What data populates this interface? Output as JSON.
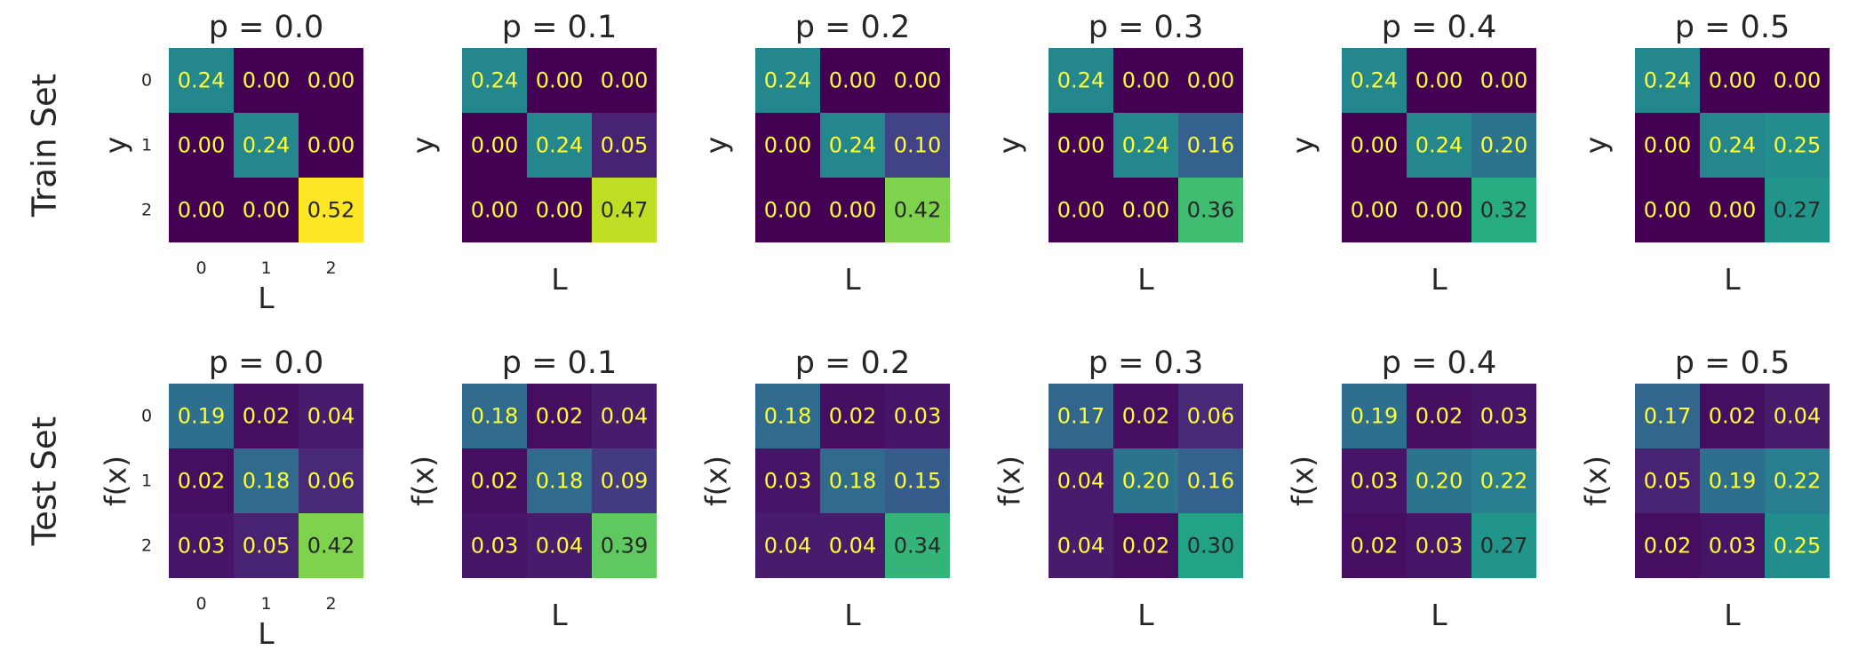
{
  "figure": {
    "rows": [
      {
        "row_label": "Train Set",
        "ylabel": "y",
        "xlabel": "L",
        "tick_labels": [
          "0",
          "1",
          "2"
        ],
        "panels": [
          {
            "title": "p = 0.0",
            "matrix": [
              [
                0.24,
                0.0,
                0.0
              ],
              [
                0.0,
                0.24,
                0.0
              ],
              [
                0.0,
                0.0,
                0.52
              ]
            ]
          },
          {
            "title": "p = 0.1",
            "matrix": [
              [
                0.24,
                0.0,
                0.0
              ],
              [
                0.0,
                0.24,
                0.05
              ],
              [
                0.0,
                0.0,
                0.47
              ]
            ]
          },
          {
            "title": "p = 0.2",
            "matrix": [
              [
                0.24,
                0.0,
                0.0
              ],
              [
                0.0,
                0.24,
                0.1
              ],
              [
                0.0,
                0.0,
                0.42
              ]
            ]
          },
          {
            "title": "p = 0.3",
            "matrix": [
              [
                0.24,
                0.0,
                0.0
              ],
              [
                0.0,
                0.24,
                0.16
              ],
              [
                0.0,
                0.0,
                0.36
              ]
            ]
          },
          {
            "title": "p = 0.4",
            "matrix": [
              [
                0.24,
                0.0,
                0.0
              ],
              [
                0.0,
                0.24,
                0.2
              ],
              [
                0.0,
                0.0,
                0.32
              ]
            ]
          },
          {
            "title": "p = 0.5",
            "matrix": [
              [
                0.24,
                0.0,
                0.0
              ],
              [
                0.0,
                0.24,
                0.25
              ],
              [
                0.0,
                0.0,
                0.27
              ]
            ]
          }
        ]
      },
      {
        "row_label": "Test Set",
        "ylabel": "f(x)",
        "xlabel": "L",
        "tick_labels": [
          "0",
          "1",
          "2"
        ],
        "panels": [
          {
            "title": "p = 0.0",
            "matrix": [
              [
                0.19,
                0.02,
                0.04
              ],
              [
                0.02,
                0.18,
                0.06
              ],
              [
                0.03,
                0.05,
                0.42
              ]
            ]
          },
          {
            "title": "p = 0.1",
            "matrix": [
              [
                0.18,
                0.02,
                0.04
              ],
              [
                0.02,
                0.18,
                0.09
              ],
              [
                0.03,
                0.04,
                0.39
              ]
            ]
          },
          {
            "title": "p = 0.2",
            "matrix": [
              [
                0.18,
                0.02,
                0.03
              ],
              [
                0.03,
                0.18,
                0.15
              ],
              [
                0.04,
                0.04,
                0.34
              ]
            ]
          },
          {
            "title": "p = 0.3",
            "matrix": [
              [
                0.17,
                0.02,
                0.06
              ],
              [
                0.04,
                0.2,
                0.16
              ],
              [
                0.04,
                0.02,
                0.3
              ]
            ]
          },
          {
            "title": "p = 0.4",
            "matrix": [
              [
                0.19,
                0.02,
                0.03
              ],
              [
                0.03,
                0.2,
                0.22
              ],
              [
                0.02,
                0.03,
                0.27
              ]
            ]
          },
          {
            "title": "p = 0.5",
            "matrix": [
              [
                0.17,
                0.02,
                0.04
              ],
              [
                0.05,
                0.19,
                0.22
              ],
              [
                0.02,
                0.03,
                0.25
              ]
            ]
          }
        ]
      }
    ],
    "colormap": "viridis",
    "color_range": [
      0.0,
      0.52
    ],
    "text_color_light": "#ffff33",
    "text_color_dark": "#262626"
  },
  "chart_data": [
    {
      "type": "heatmap",
      "title": "p = 0.0",
      "xlabel": "L",
      "ylabel": "y",
      "x_categories": [
        "0",
        "1",
        "2"
      ],
      "y_categories": [
        "0",
        "1",
        "2"
      ],
      "values": [
        [
          0.24,
          0.0,
          0.0
        ],
        [
          0.0,
          0.24,
          0.0
        ],
        [
          0.0,
          0.0,
          0.52
        ]
      ]
    },
    {
      "type": "heatmap",
      "title": "p = 0.1",
      "xlabel": "L",
      "ylabel": "y",
      "x_categories": [
        "0",
        "1",
        "2"
      ],
      "y_categories": [
        "0",
        "1",
        "2"
      ],
      "values": [
        [
          0.24,
          0.0,
          0.0
        ],
        [
          0.0,
          0.24,
          0.05
        ],
        [
          0.0,
          0.0,
          0.47
        ]
      ]
    },
    {
      "type": "heatmap",
      "title": "p = 0.2",
      "xlabel": "L",
      "ylabel": "y",
      "x_categories": [
        "0",
        "1",
        "2"
      ],
      "y_categories": [
        "0",
        "1",
        "2"
      ],
      "values": [
        [
          0.24,
          0.0,
          0.0
        ],
        [
          0.0,
          0.24,
          0.1
        ],
        [
          0.0,
          0.0,
          0.42
        ]
      ]
    },
    {
      "type": "heatmap",
      "title": "p = 0.3",
      "xlabel": "L",
      "ylabel": "y",
      "x_categories": [
        "0",
        "1",
        "2"
      ],
      "y_categories": [
        "0",
        "1",
        "2"
      ],
      "values": [
        [
          0.24,
          0.0,
          0.0
        ],
        [
          0.0,
          0.24,
          0.16
        ],
        [
          0.0,
          0.0,
          0.36
        ]
      ]
    },
    {
      "type": "heatmap",
      "title": "p = 0.4",
      "xlabel": "L",
      "ylabel": "y",
      "x_categories": [
        "0",
        "1",
        "2"
      ],
      "y_categories": [
        "0",
        "1",
        "2"
      ],
      "values": [
        [
          0.24,
          0.0,
          0.0
        ],
        [
          0.0,
          0.24,
          0.2
        ],
        [
          0.0,
          0.0,
          0.32
        ]
      ]
    },
    {
      "type": "heatmap",
      "title": "p = 0.5",
      "xlabel": "L",
      "ylabel": "y",
      "x_categories": [
        "0",
        "1",
        "2"
      ],
      "y_categories": [
        "0",
        "1",
        "2"
      ],
      "values": [
        [
          0.24,
          0.0,
          0.0
        ],
        [
          0.0,
          0.24,
          0.25
        ],
        [
          0.0,
          0.0,
          0.27
        ]
      ]
    },
    {
      "type": "heatmap",
      "title": "p = 0.0",
      "xlabel": "L",
      "ylabel": "f(x)",
      "x_categories": [
        "0",
        "1",
        "2"
      ],
      "y_categories": [
        "0",
        "1",
        "2"
      ],
      "values": [
        [
          0.19,
          0.02,
          0.04
        ],
        [
          0.02,
          0.18,
          0.06
        ],
        [
          0.03,
          0.05,
          0.42
        ]
      ]
    },
    {
      "type": "heatmap",
      "title": "p = 0.1",
      "xlabel": "L",
      "ylabel": "f(x)",
      "x_categories": [
        "0",
        "1",
        "2"
      ],
      "y_categories": [
        "0",
        "1",
        "2"
      ],
      "values": [
        [
          0.18,
          0.02,
          0.04
        ],
        [
          0.02,
          0.18,
          0.09
        ],
        [
          0.03,
          0.04,
          0.39
        ]
      ]
    },
    {
      "type": "heatmap",
      "title": "p = 0.2",
      "xlabel": "L",
      "ylabel": "f(x)",
      "x_categories": [
        "0",
        "1",
        "2"
      ],
      "y_categories": [
        "0",
        "1",
        "2"
      ],
      "values": [
        [
          0.18,
          0.02,
          0.03
        ],
        [
          0.03,
          0.18,
          0.15
        ],
        [
          0.04,
          0.04,
          0.34
        ]
      ]
    },
    {
      "type": "heatmap",
      "title": "p = 0.3",
      "xlabel": "L",
      "ylabel": "f(x)",
      "x_categories": [
        "0",
        "1",
        "2"
      ],
      "y_categories": [
        "0",
        "1",
        "2"
      ],
      "values": [
        [
          0.17,
          0.02,
          0.06
        ],
        [
          0.04,
          0.2,
          0.16
        ],
        [
          0.04,
          0.02,
          0.3
        ]
      ]
    },
    {
      "type": "heatmap",
      "title": "p = 0.4",
      "xlabel": "L",
      "ylabel": "f(x)",
      "x_categories": [
        "0",
        "1",
        "2"
      ],
      "y_categories": [
        "0",
        "1",
        "2"
      ],
      "values": [
        [
          0.19,
          0.02,
          0.03
        ],
        [
          0.03,
          0.2,
          0.22
        ],
        [
          0.02,
          0.03,
          0.27
        ]
      ]
    },
    {
      "type": "heatmap",
      "title": "p = 0.5",
      "xlabel": "L",
      "ylabel": "f(x)",
      "x_categories": [
        "0",
        "1",
        "2"
      ],
      "y_categories": [
        "0",
        "1",
        "2"
      ],
      "values": [
        [
          0.17,
          0.02,
          0.04
        ],
        [
          0.05,
          0.19,
          0.22
        ],
        [
          0.02,
          0.03,
          0.25
        ]
      ]
    }
  ]
}
